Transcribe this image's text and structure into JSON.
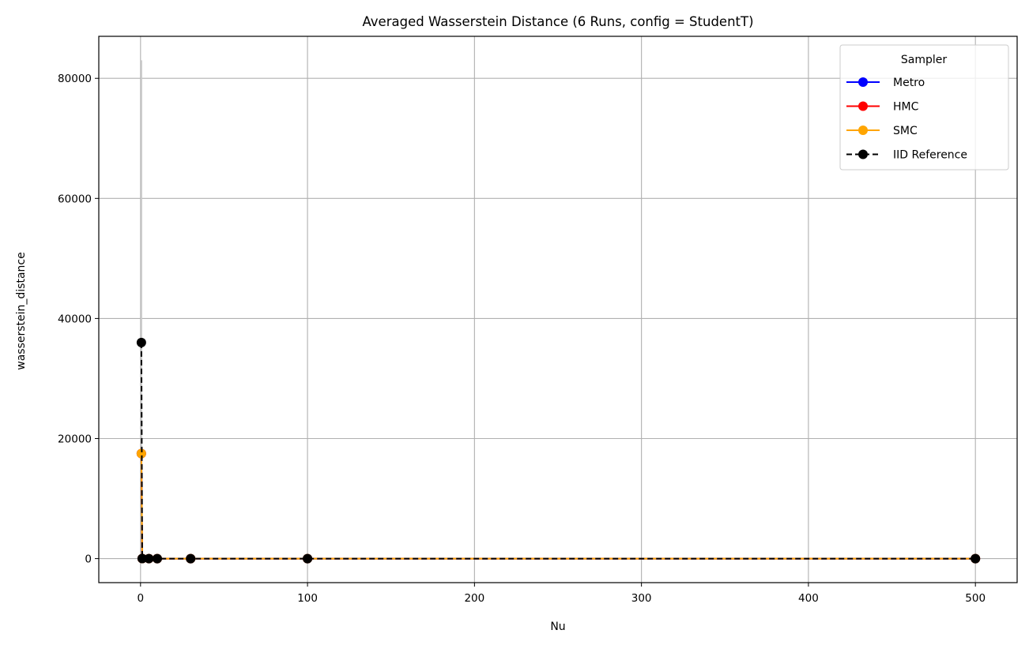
{
  "chart_data": {
    "type": "line",
    "title": "Averaged Wasserstein Distance (6 Runs, config = StudentT)",
    "xlabel": "Nu",
    "ylabel": "wasserstein_distance",
    "xlim": [
      -25,
      525
    ],
    "ylim": [
      -4000,
      87000
    ],
    "xticks": [
      0,
      100,
      200,
      300,
      400,
      500
    ],
    "yticks": [
      0,
      20000,
      40000,
      60000,
      80000
    ],
    "grid": true,
    "legend": {
      "title": "Sampler",
      "placement": "top-right"
    },
    "x": [
      0.5,
      1,
      5,
      10,
      30,
      100,
      500
    ],
    "series": [
      {
        "name": "Metro",
        "color": "#0000ff",
        "dashed": false,
        "values": [
          17500,
          5,
          2,
          1,
          0.5,
          0.3,
          0.2
        ],
        "error_high": [
          83000,
          0,
          0,
          0,
          0,
          0,
          0
        ]
      },
      {
        "name": "HMC",
        "color": "#ff0000",
        "dashed": false,
        "values": [
          17500,
          5,
          2,
          1,
          0.5,
          0.3,
          0.2
        ]
      },
      {
        "name": "SMC",
        "color": "#ffa500",
        "dashed": false,
        "values": [
          17500,
          5,
          2,
          1,
          0.5,
          0.3,
          0.2
        ]
      },
      {
        "name": "IID Reference",
        "color": "#000000",
        "dashed": true,
        "values": [
          36000,
          5,
          2,
          1,
          0.5,
          0.3,
          0.2
        ]
      }
    ]
  }
}
